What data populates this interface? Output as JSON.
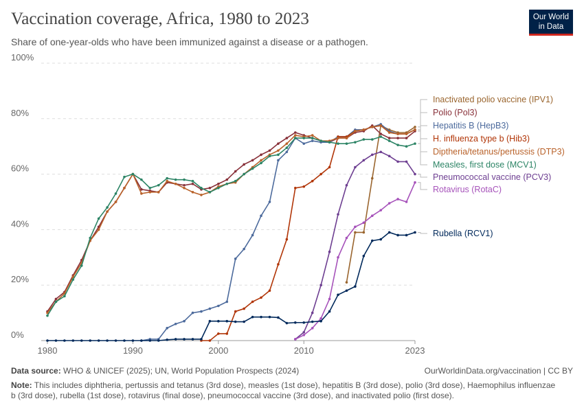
{
  "header": {
    "title": "Vaccination coverage, Africa, 1980 to 2023",
    "subtitle": "Share of one-year-olds who have been immunized against a disease or a pathogen.",
    "logo": "Our World in Data"
  },
  "footer": {
    "source_label": "Data source:",
    "source": "WHO & UNICEF (2025); UN, World Population Prospects (2024)",
    "url": "OurWorldinData.org/vaccination | CC BY",
    "note_label": "Note:",
    "note": "This includes diphtheria, pertussis and tetanus (3rd dose), measles (1st dose), hepatitis B (3rd dose), polio (3rd dose), Haemophilus influenzae b (3rd dose), rubella (1st dose), rotavirus (final dose), pneumococcal vaccine (3rd dose), and inactivated polio (first dose)."
  },
  "chart_data": {
    "type": "line",
    "xlim": [
      1980,
      2023
    ],
    "ylim": [
      0,
      100
    ],
    "grid": true,
    "legend": "right (line labels)",
    "x_ticks": [
      "1980",
      "1990",
      "2000",
      "2010",
      "2023"
    ],
    "y_ticks": [
      "0%",
      "20%",
      "40%",
      "60%",
      "80%",
      "100%"
    ],
    "series": [
      {
        "name": "Inactivated polio vaccine (IPV1)",
        "color": "#9a652e",
        "start": 2015,
        "values": [
          21,
          39,
          39,
          58.5,
          77.5,
          76,
          75,
          75,
          77
        ]
      },
      {
        "name": "Polio (Pol3)",
        "color": "#883039",
        "start": 1980,
        "values": [
          10.5,
          15,
          17.5,
          23.5,
          29,
          36,
          41,
          46.5,
          50,
          55,
          60,
          54.5,
          54,
          53.5,
          57,
          56.5,
          56,
          56.5,
          54.5,
          55,
          56.5,
          58,
          61,
          63.5,
          65,
          67,
          68.5,
          71,
          73,
          75,
          74,
          73,
          72,
          71.5,
          73,
          73,
          75,
          75.5,
          77.5,
          74.5,
          73,
          73,
          73,
          75.5
        ]
      },
      {
        "name": "Hepatitis B (HepB3)",
        "color": "#4c6a9c",
        "start": 1991,
        "values": [
          0,
          0.5,
          0.5,
          4.5,
          6,
          7,
          10,
          10.5,
          11.5,
          12.5,
          14,
          29.5,
          33,
          38,
          45,
          50,
          65,
          68,
          73,
          71,
          72,
          71.5,
          71.5,
          73.5,
          73.5,
          76,
          76,
          77,
          78,
          75.5,
          74.5,
          74.5,
          76
        ]
      },
      {
        "name": "H. influenza type b (Hib3)",
        "color": "#b13507",
        "start": 1998,
        "values": [
          0,
          0,
          2.5,
          2.5,
          10.5,
          11.5,
          14,
          15.5,
          18,
          27.5,
          36.5,
          55,
          55.5,
          57.5,
          60,
          62.5,
          73.5,
          73.5,
          75.5,
          76,
          77,
          77.5,
          75,
          74.5,
          74.5,
          76
        ]
      },
      {
        "name": "Diptheria/tetanus/pertussis (DTP3)",
        "color": "#b9622a",
        "start": 1980,
        "values": [
          10,
          14,
          17,
          23,
          28,
          36,
          40,
          46.5,
          50,
          55,
          60,
          53,
          53.5,
          53.5,
          57.5,
          56.5,
          55,
          53.5,
          52.5,
          53.5,
          55.5,
          56.5,
          57,
          60,
          62.5,
          65,
          67,
          68.5,
          71,
          74,
          73.5,
          74,
          72,
          72,
          73,
          73,
          75.5,
          76,
          77,
          77.5,
          75,
          74.5,
          74.5,
          76
        ]
      },
      {
        "name": "Measles, first dose (MCV1)",
        "color": "#2c8465",
        "start": 1980,
        "values": [
          9,
          14,
          16,
          22,
          27,
          37,
          44,
          48,
          53,
          59,
          60,
          58,
          55,
          56,
          58.5,
          58,
          58,
          57.5,
          55,
          53.5,
          55,
          56.5,
          57.5,
          60,
          62,
          64,
          66.5,
          67,
          69.5,
          73,
          73,
          73,
          72,
          71.5,
          71,
          71,
          71.5,
          72.5,
          72.5,
          73.5,
          72,
          70.5,
          70,
          71
        ]
      },
      {
        "name": "Pneumococcal vaccine (PCV3)",
        "color": "#6d3e91",
        "start": 2009,
        "values": [
          0.5,
          3,
          10,
          20,
          32,
          45.5,
          56,
          62.5,
          65,
          67,
          68,
          66.5,
          64.5,
          64.5,
          60
        ]
      },
      {
        "name": "Rotavirus (RotaC)",
        "color": "#a652ba",
        "start": 2009,
        "values": [
          0.5,
          2,
          4.5,
          8,
          15,
          30,
          37,
          41,
          42.5,
          45,
          47,
          49.5,
          51,
          50,
          57
        ]
      },
      {
        "name": "Rubella (RCV1)",
        "color": "#00295b",
        "start": 1980,
        "values": [
          0,
          0,
          0,
          0,
          0,
          0,
          0,
          0,
          0,
          0,
          0,
          0,
          0,
          0,
          0.3,
          0.5,
          0.5,
          0.5,
          0.5,
          7,
          7,
          7,
          6.8,
          6.8,
          8.5,
          8.5,
          8.5,
          8.3,
          6.3,
          6.5,
          6.5,
          6.8,
          7,
          10.5,
          16.5,
          18,
          19.5,
          30.5,
          36,
          36.5,
          39,
          38,
          38,
          39
        ]
      }
    ]
  }
}
